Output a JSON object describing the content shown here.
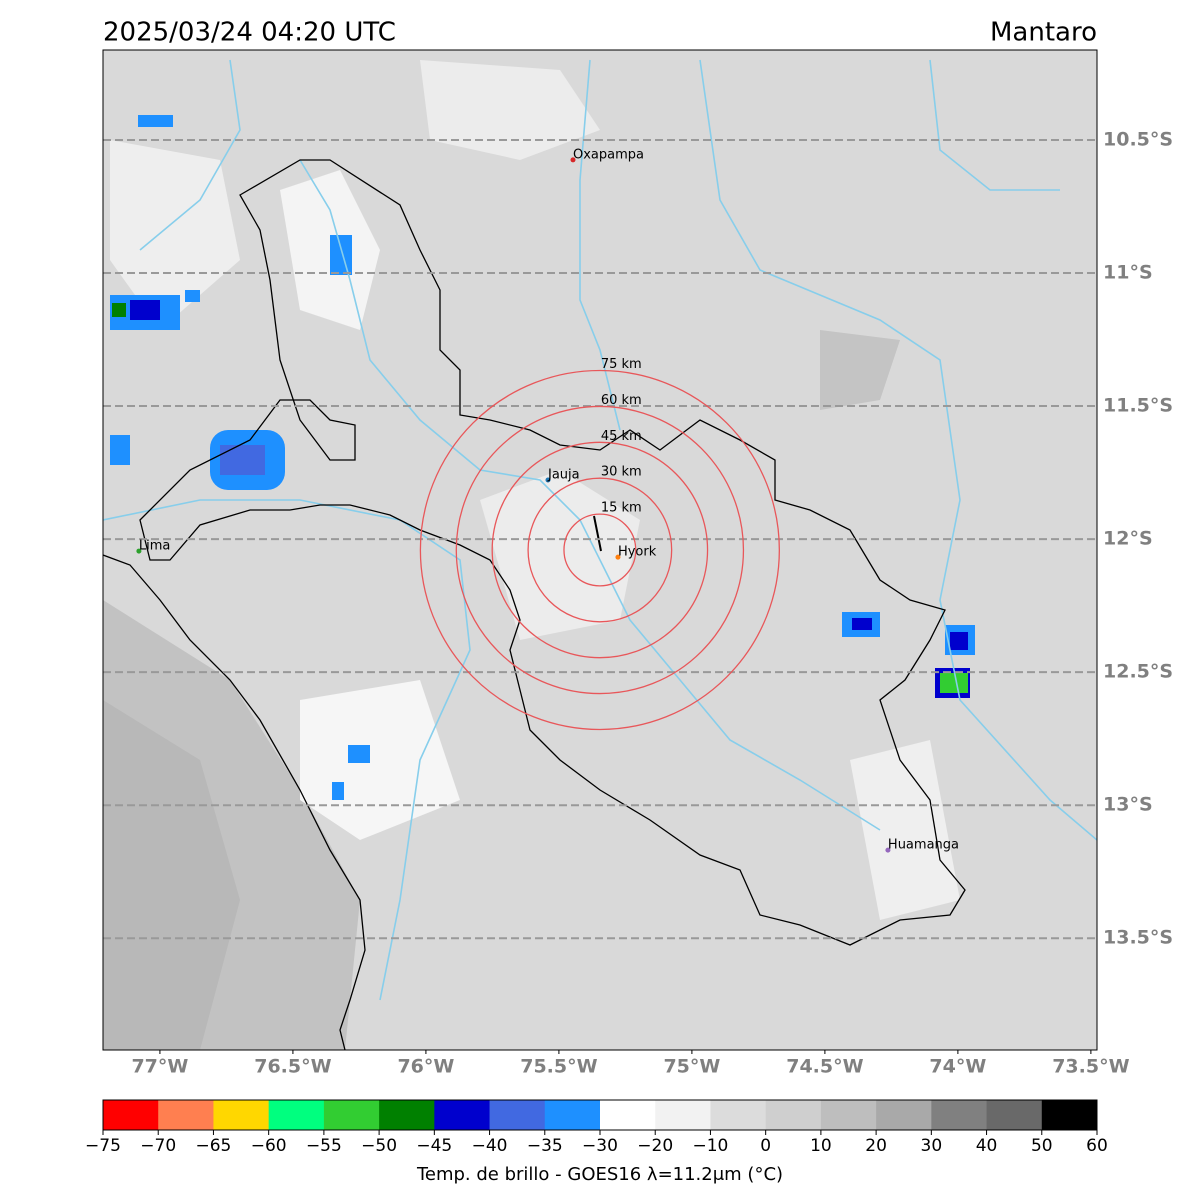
{
  "map": {
    "title": "2025/03/24 04:20 UTC",
    "region": "Mantaro",
    "lonlim": [
      -77.214,
      -73.477
    ],
    "latlim": [
      -13.92,
      -10.162
    ],
    "lat_ticks": [
      {
        "value": -10.5,
        "label": "10.5°S"
      },
      {
        "value": -11,
        "label": "11°S"
      },
      {
        "value": -11.5,
        "label": "11.5°S"
      },
      {
        "value": -12,
        "label": "12°S"
      },
      {
        "value": -12.5,
        "label": "12.5°S"
      },
      {
        "value": -13,
        "label": "13°S"
      },
      {
        "value": -13.5,
        "label": "13.5°S"
      }
    ],
    "lon_ticks": [
      {
        "value": -77,
        "label": "77°W"
      },
      {
        "value": -76.5,
        "label": "76.5°W"
      },
      {
        "value": -76,
        "label": "76°W"
      },
      {
        "value": -75.5,
        "label": "75.5°W"
      },
      {
        "value": -75,
        "label": "75°W"
      },
      {
        "value": -74.5,
        "label": "74.5°W"
      },
      {
        "value": -74,
        "label": "74°W"
      },
      {
        "value": -73.5,
        "label": "73.5°W"
      }
    ],
    "grid": true,
    "cities": [
      {
        "name": "Oxapampa",
        "lon": -75.447,
        "lat": -10.575,
        "color": "#d62728"
      },
      {
        "name": "Jauja",
        "lon": -75.541,
        "lat": -11.778,
        "color": "#1f77b4"
      },
      {
        "name": "Hyork",
        "lon": -75.278,
        "lat": -12.068,
        "color": "#ff7f0e"
      },
      {
        "name": "Lima",
        "lon": -77.079,
        "lat": -12.045,
        "color": "#2ca02c"
      },
      {
        "name": "Huamanga",
        "lon": -74.263,
        "lat": -13.169,
        "color": "#9467bd"
      }
    ],
    "rings": {
      "center_lon": -75.346,
      "center_lat": -12.041,
      "color": "#e8575a",
      "radii_km": [
        {
          "value": 15,
          "label": "15 km"
        },
        {
          "value": 30,
          "label": "30 km"
        },
        {
          "value": 45,
          "label": "45 km"
        },
        {
          "value": 60,
          "label": "60 km"
        },
        {
          "value": 75,
          "label": "75 km"
        }
      ]
    },
    "colorbar": {
      "label": "Temp. de brillo - GOES16 λ=11.2μm (°C)",
      "bounds": [
        {
          "value": -75,
          "label": "−75"
        },
        {
          "value": -70,
          "label": "−70"
        },
        {
          "value": -65,
          "label": "−65"
        },
        {
          "value": -60,
          "label": "−60"
        },
        {
          "value": -55,
          "label": "−55"
        },
        {
          "value": -50,
          "label": "−50"
        },
        {
          "value": -45,
          "label": "−45"
        },
        {
          "value": -40,
          "label": "−40"
        },
        {
          "value": -35,
          "label": "−35"
        },
        {
          "value": -30,
          "label": "−30"
        },
        {
          "value": -20,
          "label": "−20"
        },
        {
          "value": -10,
          "label": "−10"
        },
        0,
        10,
        20,
        30,
        40,
        50,
        60
      ],
      "colors": [
        "#ff0000",
        "#ff7f50",
        "#ffd700",
        "#00ff7f",
        "#32cd32",
        "#008000",
        "#0000cd",
        "#4169e1",
        "#1e90ff",
        "#ffffff",
        "#f2f2f2",
        "#dcdcdc",
        "#cfcfcf",
        "#bebebe",
        "#a9a9a9",
        "#808080",
        "#696969",
        "#000000"
      ]
    }
  }
}
